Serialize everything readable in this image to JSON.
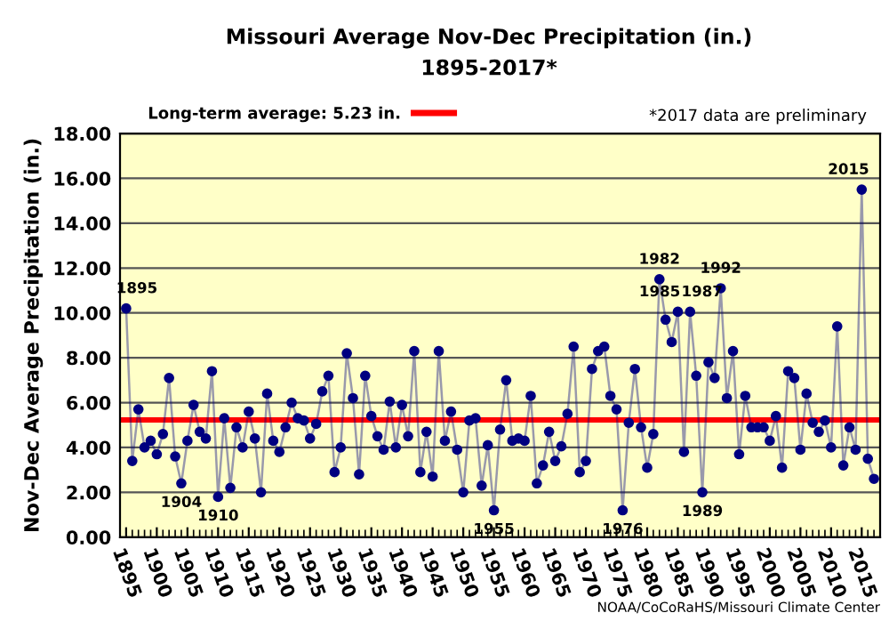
{
  "chart_data": {
    "type": "line",
    "title": "Missouri Average Nov-Dec Precipitation (in.)",
    "subtitle": "1895-2017*",
    "ylabel": "Nov-Dec Average Precipitation (in.)",
    "x": [
      1895,
      1896,
      1897,
      1898,
      1899,
      1900,
      1901,
      1902,
      1903,
      1904,
      1905,
      1906,
      1907,
      1908,
      1909,
      1910,
      1911,
      1912,
      1913,
      1914,
      1915,
      1916,
      1917,
      1918,
      1919,
      1920,
      1921,
      1922,
      1923,
      1924,
      1925,
      1926,
      1927,
      1928,
      1929,
      1930,
      1931,
      1932,
      1933,
      1934,
      1935,
      1936,
      1937,
      1938,
      1939,
      1940,
      1941,
      1942,
      1943,
      1944,
      1945,
      1946,
      1947,
      1948,
      1949,
      1950,
      1951,
      1952,
      1953,
      1954,
      1955,
      1956,
      1957,
      1958,
      1959,
      1960,
      1961,
      1962,
      1963,
      1964,
      1965,
      1966,
      1967,
      1968,
      1969,
      1970,
      1971,
      1972,
      1973,
      1974,
      1975,
      1976,
      1977,
      1978,
      1979,
      1980,
      1981,
      1982,
      1983,
      1984,
      1985,
      1986,
      1987,
      1988,
      1989,
      1990,
      1991,
      1992,
      1993,
      1994,
      1995,
      1996,
      1997,
      1998,
      1999,
      2000,
      2001,
      2002,
      2003,
      2004,
      2005,
      2006,
      2007,
      2008,
      2009,
      2010,
      2011,
      2012,
      2013,
      2014,
      2015,
      2016,
      2017
    ],
    "series": [
      {
        "color": "#000080",
        "values": [
          10.2,
          3.4,
          5.7,
          4.0,
          4.3,
          3.7,
          4.6,
          7.1,
          3.6,
          2.4,
          4.3,
          5.9,
          4.7,
          4.4,
          7.4,
          1.8,
          5.3,
          2.2,
          4.9,
          4.0,
          5.6,
          4.4,
          2.0,
          6.4,
          4.3,
          3.8,
          4.9,
          6.0,
          5.3,
          5.2,
          4.4,
          5.05,
          6.5,
          7.2,
          2.9,
          4.0,
          8.2,
          6.2,
          2.8,
          7.2,
          5.4,
          4.5,
          3.9,
          6.05,
          4.0,
          5.9,
          4.5,
          8.3,
          2.9,
          4.7,
          2.7,
          8.3,
          4.3,
          5.6,
          3.9,
          2.0,
          5.2,
          5.3,
          2.3,
          4.1,
          1.2,
          4.8,
          7.0,
          4.3,
          4.4,
          4.3,
          6.3,
          2.4,
          3.2,
          4.7,
          3.4,
          4.05,
          5.5,
          8.5,
          2.9,
          3.4,
          7.5,
          8.3,
          8.5,
          6.3,
          5.7,
          1.2,
          5.1,
          7.5,
          4.9,
          3.1,
          4.6,
          11.5,
          9.7,
          8.7,
          10.05,
          3.8,
          10.05,
          7.2,
          2.0,
          7.8,
          7.1,
          11.1,
          6.2,
          8.3,
          3.7,
          6.3,
          4.9,
          4.9,
          4.9,
          4.3,
          5.4,
          3.1,
          7.4,
          7.1,
          3.9,
          6.4,
          5.1,
          4.7,
          5.2,
          4.0,
          9.4,
          3.2,
          4.9,
          3.9,
          15.5,
          3.5,
          2.6
        ]
      }
    ],
    "marker": "circle",
    "line_style": "solid",
    "xlim": [
      1894,
      2018
    ],
    "xticks": [
      1895,
      1900,
      1905,
      1910,
      1915,
      1920,
      1925,
      1930,
      1935,
      1940,
      1945,
      1950,
      1955,
      1960,
      1965,
      1970,
      1975,
      1980,
      1985,
      1990,
      1995,
      2000,
      2005,
      2010,
      2015
    ],
    "ylim": [
      0,
      18
    ],
    "yticks": [
      {
        "value": 0,
        "label": "0.00"
      },
      {
        "value": 2,
        "label": "2.00"
      },
      {
        "value": 4,
        "label": "4.00"
      },
      {
        "value": 6,
        "label": "6.00"
      },
      {
        "value": 8,
        "label": "8.00"
      },
      {
        "value": 10,
        "label": "10.00"
      },
      {
        "value": 12,
        "label": "12.00"
      },
      {
        "value": 14,
        "label": "14.00"
      },
      {
        "value": 16,
        "label": "16.00"
      },
      {
        "value": 18,
        "label": "18.00"
      }
    ],
    "grid": "y",
    "legend": "top left",
    "ref_lines": [
      {
        "axis": "y",
        "value": 5.23,
        "label": "Long-term average: 5.23 in.",
        "color": "#ff0000"
      }
    ],
    "annotations": [
      {
        "text": "1895",
        "x": 1895,
        "y": 10.2
      },
      {
        "text": "1904",
        "x": 1904,
        "y": 2.4
      },
      {
        "text": "1910",
        "x": 1910,
        "y": 1.8
      },
      {
        "text": "1955",
        "x": 1955,
        "y": 1.2
      },
      {
        "text": "1976",
        "x": 1976,
        "y": 1.2
      },
      {
        "text": "1982",
        "x": 1982,
        "y": 11.5
      },
      {
        "text": "1985",
        "x": 1985,
        "y": 10.05
      },
      {
        "text": "1987",
        "x": 1987,
        "y": 10.05
      },
      {
        "text": "1989",
        "x": 1989,
        "y": 2.0
      },
      {
        "text": "1992",
        "x": 1992,
        "y": 11.1
      },
      {
        "text": "2015",
        "x": 2015,
        "y": 15.5
      },
      "*2017 data are preliminary",
      "NOAA/CoCoRaHS/Missouri Climate Center"
    ]
  }
}
